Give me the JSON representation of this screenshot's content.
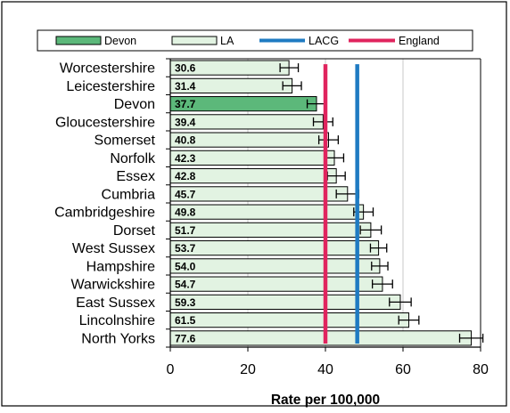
{
  "chart_data": {
    "type": "bar",
    "orientation": "horizontal",
    "title": "",
    "xlabel": "Rate per 100,000",
    "ylabel": "",
    "xlim": [
      0,
      80
    ],
    "xticks": [
      0,
      20,
      40,
      60,
      80
    ],
    "grid": "vertical gridlines",
    "legend_position": "top",
    "legend": [
      {
        "label": "Devon",
        "kind": "bar",
        "color": "#5cb87a"
      },
      {
        "label": "LA",
        "kind": "bar",
        "color": "#e2f3e2"
      },
      {
        "label": "LACG",
        "kind": "line",
        "color": "#1f7bc2"
      },
      {
        "label": "England",
        "kind": "line",
        "color": "#e0245e"
      }
    ],
    "categories": [
      "Worcestershire",
      "Leicestershire",
      "Devon",
      "Gloucestershire",
      "Somerset",
      "Norfolk",
      "Essex",
      "Cumbria",
      "Cambridgeshire",
      "Dorset",
      "West Sussex",
      "Hampshire",
      "Warwickshire",
      "East Sussex",
      "Lincolnshire",
      "North Yorks"
    ],
    "values": [
      30.6,
      31.4,
      37.7,
      39.4,
      40.8,
      42.3,
      42.8,
      45.7,
      49.8,
      51.7,
      53.7,
      54.0,
      54.7,
      59.3,
      61.5,
      77.6
    ],
    "value_labels": [
      "30.6",
      "31.4",
      "37.7",
      "39.4",
      "40.8",
      "42.3",
      "42.8",
      "45.7",
      "49.8",
      "51.7",
      "53.7",
      "54.0",
      "54.7",
      "59.3",
      "61.5",
      "77.6"
    ],
    "error_low": [
      28.3,
      29.0,
      35.3,
      36.9,
      38.3,
      39.9,
      40.5,
      42.8,
      47.3,
      49.0,
      51.6,
      51.9,
      52.1,
      56.5,
      58.9,
      74.6
    ],
    "error_high": [
      33.0,
      33.8,
      40.1,
      41.9,
      43.3,
      44.7,
      45.1,
      48.6,
      52.3,
      54.4,
      55.8,
      56.1,
      57.3,
      62.1,
      64.1,
      80.6
    ],
    "highlight": "Devon",
    "colors": {
      "bar": "#e2f3e2",
      "highlight_bar": "#5cb87a",
      "lacg": "#1f7bc2",
      "england": "#e0245e"
    },
    "reference_lines": [
      {
        "name": "LACG",
        "value": 48.2,
        "color": "#1f7bc2"
      },
      {
        "name": "England",
        "value": 40.0,
        "color": "#e0245e"
      }
    ]
  }
}
